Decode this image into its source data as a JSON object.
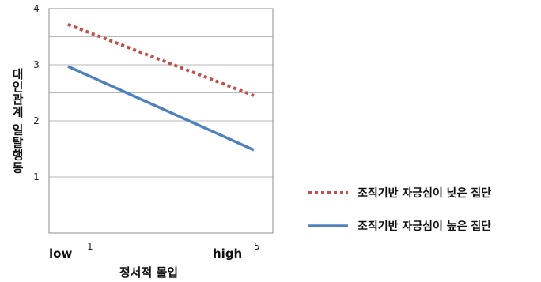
{
  "chart_data": {
    "type": "line",
    "x": [
      1,
      5
    ],
    "xlim": [
      1,
      5
    ],
    "ylim": [
      0,
      4
    ],
    "x_tick_labels": [
      "1",
      "5"
    ],
    "x_end_words": [
      "low",
      "high"
    ],
    "y_tick_labels": [
      "1",
      "2",
      "3",
      "4"
    ],
    "xlabel": "정서적  몰입",
    "ylabel": "대인관계 일탈행동",
    "grid": true,
    "legend_position": "right",
    "series": [
      {
        "name": "조직기반 자긍심이 낮은 집단",
        "values": [
          3.72,
          2.45
        ],
        "color": "#c0504d",
        "style": "dotted"
      },
      {
        "name": "조직기반 자긍심이 높은 집단",
        "values": [
          2.97,
          1.48
        ],
        "color": "#4f81bd",
        "style": "solid"
      }
    ]
  }
}
